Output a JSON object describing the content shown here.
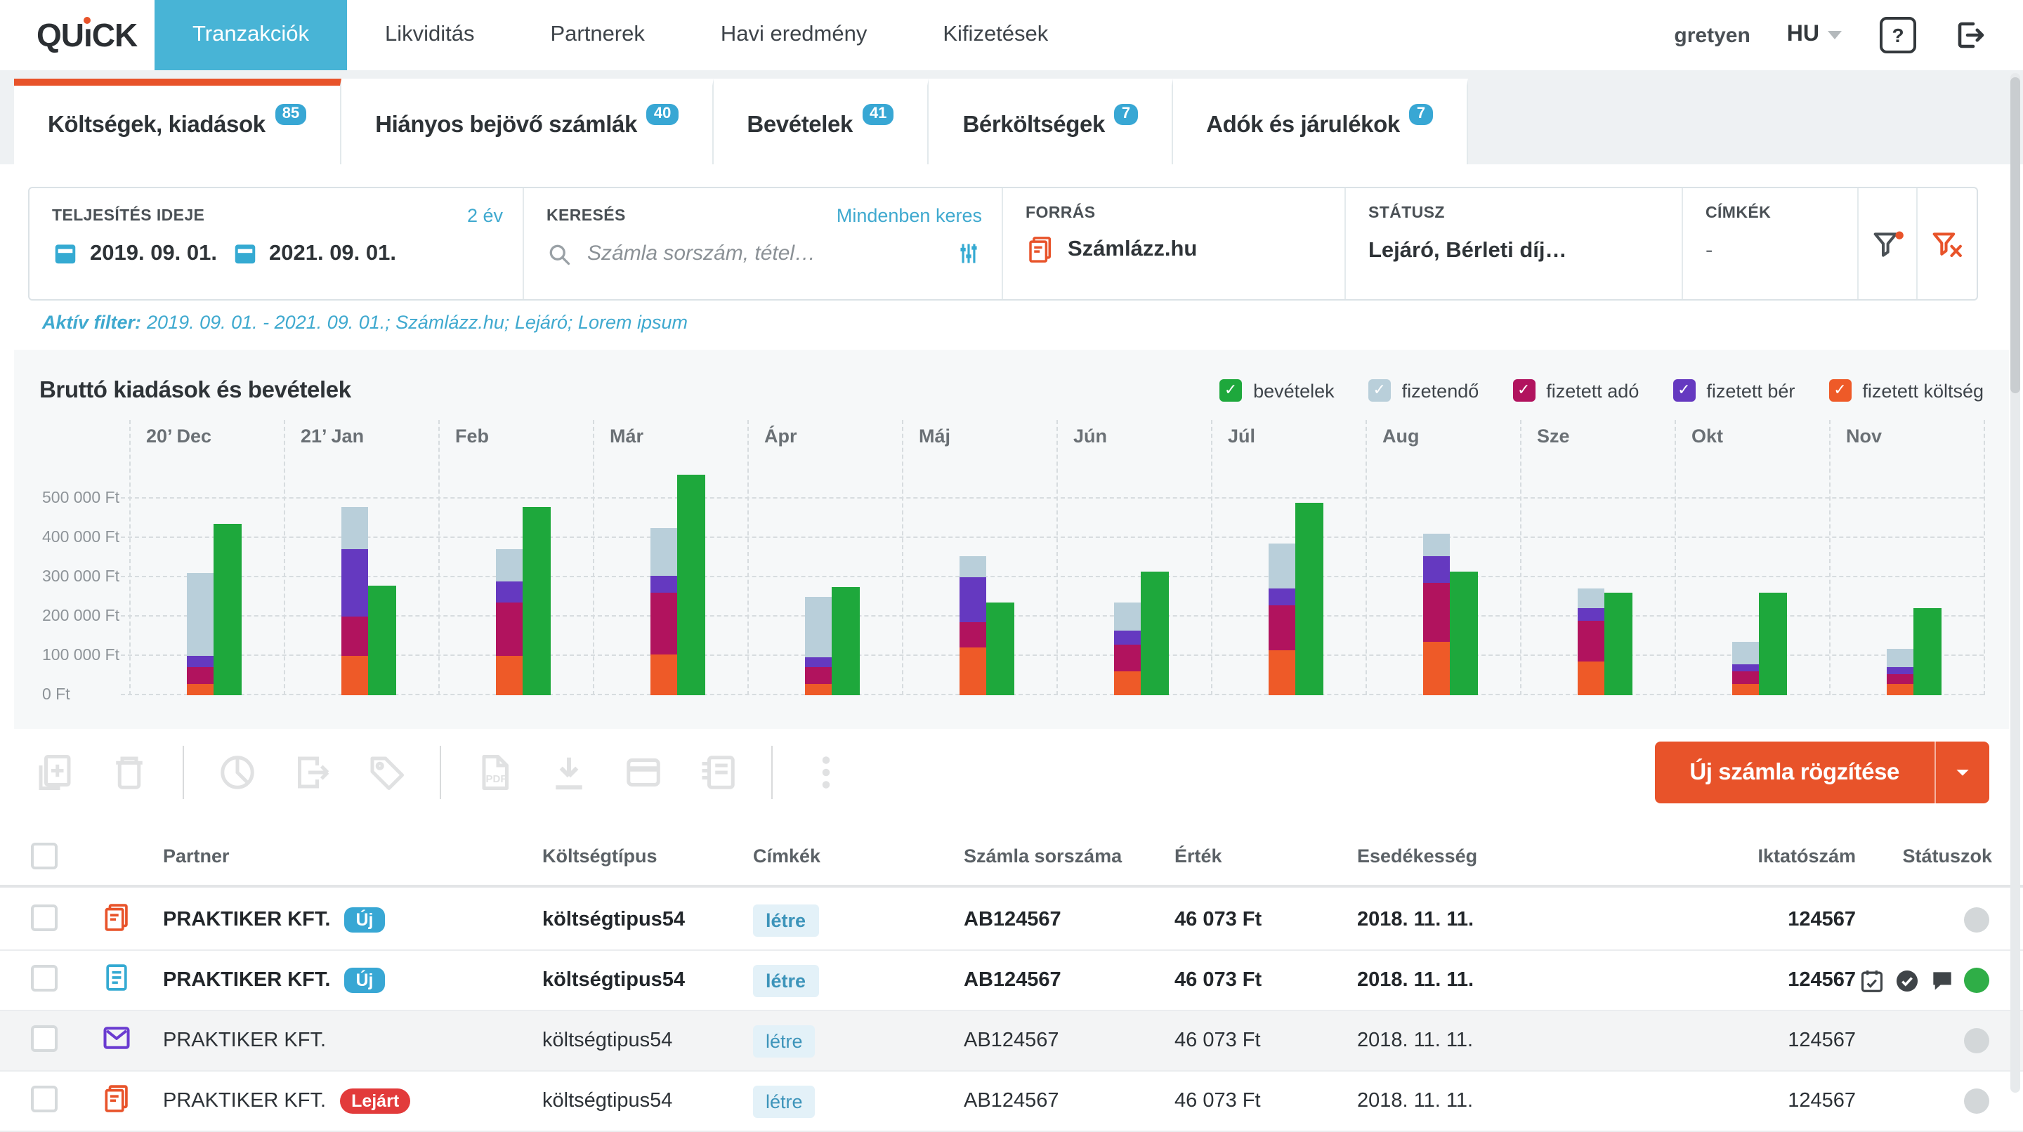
{
  "navbar": {
    "logo": "QUiCK",
    "items": [
      {
        "label": "Tranzakciók",
        "active": true
      },
      {
        "label": "Likviditás",
        "active": false
      },
      {
        "label": "Partnerek",
        "active": false
      },
      {
        "label": "Havi eredmény",
        "active": false
      },
      {
        "label": "Kifizetések",
        "active": false
      }
    ],
    "username": "gretyen",
    "language": "HU",
    "help": "?"
  },
  "tabs": [
    {
      "label": "Költségek, kiadások",
      "badge": "85",
      "active": true
    },
    {
      "label": "Hiányos bejövő számlák",
      "badge": "40",
      "active": false
    },
    {
      "label": "Bevételek",
      "badge": "41",
      "active": false
    },
    {
      "label": "Bérköltségek",
      "badge": "7",
      "active": false
    },
    {
      "label": "Adók és járulékok",
      "badge": "7",
      "active": false
    }
  ],
  "filters": {
    "period": {
      "label": "TELJESÍTÉS IDEJE",
      "link": "2 év",
      "from": "2019. 09. 01.",
      "to": "2021. 09. 01."
    },
    "search": {
      "label": "KERESÉS",
      "link": "Mindenben keres",
      "placeholder": "Számla sorszám, tétel…"
    },
    "source": {
      "label": "FORRÁS",
      "value": "Számlázz.hu"
    },
    "status": {
      "label": "STÁTUSZ",
      "value": "Lejáró, Bérleti díj…"
    },
    "tags": {
      "label": "CÍMKÉK",
      "value": "-"
    },
    "active_filter_label": "Aktív filter:",
    "active_filter_value": "2019. 09. 01. - 2021. 09. 01.; Számlázz.hu; Lejáró; Lorem ipsum"
  },
  "chart_data": {
    "type": "bar",
    "title": "Bruttó kiadások és bevételek",
    "categories": [
      "20’ Dec",
      "21’ Jan",
      "Feb",
      "Már",
      "Ápr",
      "Máj",
      "Jún",
      "Júl",
      "Aug",
      "Sze",
      "Okt",
      "Nov"
    ],
    "series": [
      {
        "name": "fizetett költség",
        "color": "#ee5a28",
        "stack": true,
        "values": [
          30000,
          100000,
          100000,
          105000,
          30000,
          120000,
          60000,
          115000,
          135000,
          85000,
          30000,
          30000
        ]
      },
      {
        "name": "fizetett adó",
        "color": "#b1135e",
        "stack": true,
        "values": [
          40000,
          100000,
          135000,
          155000,
          40000,
          65000,
          70000,
          115000,
          150000,
          105000,
          30000,
          25000
        ]
      },
      {
        "name": "fizetett bér",
        "color": "#6539c0",
        "stack": true,
        "values": [
          30000,
          170000,
          55000,
          45000,
          25000,
          115000,
          35000,
          40000,
          70000,
          30000,
          20000,
          18000
        ]
      },
      {
        "name": "fizetendő",
        "color": "#b9cfda",
        "stack": true,
        "values": [
          210000,
          110000,
          80000,
          120000,
          155000,
          55000,
          70000,
          115000,
          55000,
          50000,
          55000,
          45000
        ]
      },
      {
        "name": "bevételek",
        "color": "#1ea83c",
        "stack": false,
        "values": [
          435000,
          280000,
          480000,
          560000,
          275000,
          235000,
          315000,
          490000,
          315000,
          260000,
          260000,
          220000
        ]
      }
    ],
    "legend": [
      {
        "label": "bevételek",
        "color": "#1ea83c",
        "checked": true
      },
      {
        "label": "fizetendő",
        "color": "#b9cfda",
        "checked": true
      },
      {
        "label": "fizetett adó",
        "color": "#b1135e",
        "checked": true
      },
      {
        "label": "fizetett bér",
        "color": "#6539c0",
        "checked": true
      },
      {
        "label": "fizetett költség",
        "color": "#ee5a28",
        "checked": true
      }
    ],
    "y_ticks": [
      "500 000 Ft",
      "400 000 Ft",
      "300 000 Ft",
      "200 000 Ft",
      "100 000 Ft",
      "0 Ft"
    ],
    "ylim": [
      0,
      600000
    ],
    "xlabel": "",
    "ylabel": "",
    "grid": true,
    "legend_position": "top-right"
  },
  "toolbar": {
    "items": [
      "add-invoice",
      "trash",
      "|",
      "pie-chart",
      "export",
      "tag",
      "|",
      "pdf",
      "download",
      "credit-card",
      "ledger",
      "|",
      "kebab"
    ],
    "primary_button": "Új számla rögzítése"
  },
  "table": {
    "columns": [
      "Partner",
      "Költségtípus",
      "Címkék",
      "Számla sorszáma",
      "Érték",
      "Esedékesség",
      "Iktatószám",
      "Státuszok"
    ],
    "rows": [
      {
        "icon": "invoice-orange",
        "partner": "PRAKTIKER KFT.",
        "badge": {
          "label": "Új",
          "type": "new"
        },
        "cost_type": "költségtipus54",
        "tag": "létre",
        "invoice_no": "AB124567",
        "value": "46 073 Ft",
        "due": "2018. 11. 11.",
        "reg_no": "124567",
        "bold": true,
        "shaded": false,
        "statuses": [
          "circle-gray"
        ]
      },
      {
        "icon": "document-blue",
        "partner": "PRAKTIKER KFT.",
        "badge": {
          "label": "Új",
          "type": "new"
        },
        "cost_type": "költségtipus54",
        "tag": "létre",
        "invoice_no": "AB124567",
        "value": "46 073 Ft",
        "due": "2018. 11. 11.",
        "reg_no": "124567",
        "bold": true,
        "shaded": false,
        "statuses": [
          "calendar-check",
          "check-circle",
          "comment",
          "circle-green"
        ]
      },
      {
        "icon": "envelope-purple",
        "partner": "PRAKTIKER KFT.",
        "badge": null,
        "cost_type": "költségtipus54",
        "tag": "létre",
        "invoice_no": "AB124567",
        "value": "46 073 Ft",
        "due": "2018. 11. 11.",
        "reg_no": "124567",
        "bold": false,
        "shaded": true,
        "statuses": [
          "circle-gray"
        ]
      },
      {
        "icon": "invoice-orange",
        "partner": "PRAKTIKER KFT.",
        "badge": {
          "label": "Lejárt",
          "type": "expired"
        },
        "cost_type": "költségtipus54",
        "tag": "létre",
        "invoice_no": "AB124567",
        "value": "46 073 Ft",
        "due": "2018. 11. 11.",
        "reg_no": "124567",
        "bold": false,
        "shaded": false,
        "statuses": [
          "circle-gray"
        ]
      }
    ]
  }
}
